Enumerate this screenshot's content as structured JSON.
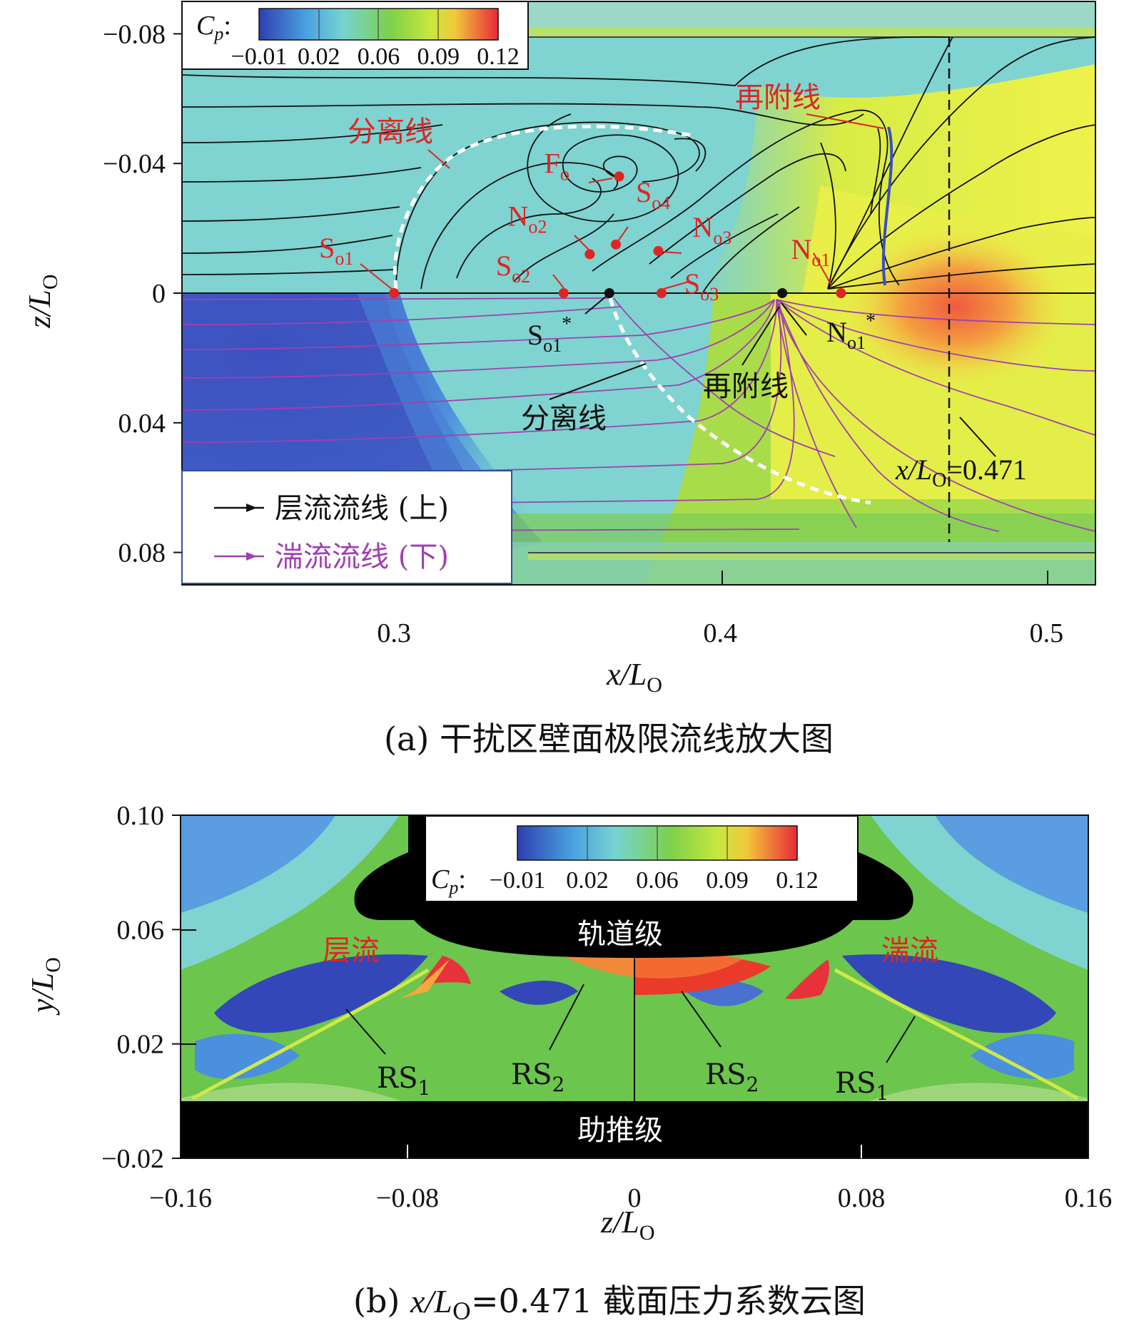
{
  "colors": {
    "cp_blue": "#3a4fbf",
    "cp_cyan": "#76d3d0",
    "cp_green": "#7ed04b",
    "cp_yellow": "#eef24a",
    "cp_red": "#e8323a",
    "laminar": "#111111",
    "turbulent": "#a040b0",
    "annotation_red": "#e02424",
    "solid": "#000000"
  },
  "chart_data": [
    {
      "type": "contour",
      "panel": "a",
      "caption": "(a) 干扰区壁面极限流线放大图",
      "xlabel": "x/LO",
      "ylabel": "z/LO",
      "xlim": [
        0.235,
        0.515
      ],
      "ylim": [
        -0.09,
        0.09
      ],
      "x_ticks": [
        "0.3",
        "0.4",
        "0.5"
      ],
      "x_tick_values": [
        0.3,
        0.4,
        0.5
      ],
      "y_ticks": [
        "−0.08",
        "−0.04",
        "0",
        "0.04",
        "0.08"
      ],
      "y_tick_values": [
        -0.08,
        -0.04,
        0,
        0.04,
        0.08
      ],
      "colorbar": {
        "label": "Cp:",
        "ticks": [
          "−0.01",
          "0.02",
          "0.06",
          "0.09",
          "0.12"
        ]
      },
      "legend": [
        {
          "label": "层流流线 (上)",
          "color": "#111111"
        },
        {
          "label": "湍流流线 (下)",
          "color": "#a040b0"
        }
      ],
      "section_line": {
        "x": 0.471,
        "label": "x/LO=0.471"
      },
      "points": [
        {
          "name": "So1",
          "x": 0.3,
          "z": 0.0,
          "color": "red"
        },
        {
          "name": "So2",
          "x": 0.352,
          "z": 0.0,
          "color": "red"
        },
        {
          "name": "So3",
          "x": 0.382,
          "z": 0.0,
          "color": "red"
        },
        {
          "name": "No2",
          "x": 0.36,
          "z": -0.012,
          "color": "red"
        },
        {
          "name": "So4",
          "x": 0.368,
          "z": -0.015,
          "color": "red"
        },
        {
          "name": "No3",
          "x": 0.381,
          "z": -0.013,
          "color": "red"
        },
        {
          "name": "Fo",
          "x": 0.369,
          "z": -0.036,
          "color": "red"
        },
        {
          "name": "No1",
          "x": 0.437,
          "z": 0.0,
          "color": "red"
        },
        {
          "name": "So1*",
          "x": 0.366,
          "z": 0.0,
          "color": "black"
        },
        {
          "name": "No1*",
          "x": 0.419,
          "z": 0.0,
          "color": "black"
        }
      ],
      "annotations": {
        "sep_red": "分离线",
        "reatt_red": "再附线",
        "sep_black": "分离线",
        "reatt_black": "再附线"
      }
    },
    {
      "type": "contour",
      "panel": "b",
      "caption": "(b) x/LO=0.471 截面压力系数云图",
      "xlabel": "z/LO",
      "ylabel": "y/LO",
      "xlim": [
        -0.16,
        0.16
      ],
      "ylim": [
        -0.02,
        0.1
      ],
      "x_ticks": [
        "−0.16",
        "−0.08",
        "0",
        "0.08",
        "0.16"
      ],
      "x_tick_values": [
        -0.16,
        -0.08,
        0,
        0.08,
        0.16
      ],
      "y_ticks": [
        "0.10",
        "0.06",
        "0.02",
        "−0.02"
      ],
      "y_tick_values": [
        0.1,
        0.06,
        0.02,
        -0.02
      ],
      "colorbar": {
        "label": "Cp:",
        "ticks": [
          "−0.01",
          "0.02",
          "0.06",
          "0.09",
          "0.12"
        ]
      },
      "labels": {
        "orbiter": "轨道级",
        "booster": "助推级",
        "laminar": "层流",
        "turbulent": "湍流",
        "rs1_left": "RS1",
        "rs2_left": "RS2",
        "rs2_right": "RS2",
        "rs1_right": "RS1"
      }
    }
  ]
}
